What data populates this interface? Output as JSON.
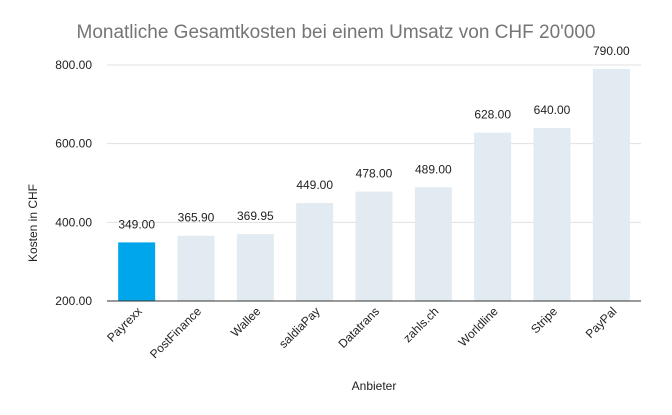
{
  "chart_data": {
    "type": "bar",
    "title": "Monatliche Gesamtkosten bei einem Umsatz von CHF 20'000",
    "xlabel": "Anbieter",
    "ylabel": "Kosten in CHF",
    "categories": [
      "Payrexx",
      "PostFinance",
      "Wallee",
      "saldiaPay",
      "Datatrans",
      "zahls.ch",
      "Worldline",
      "Stripe",
      "PayPal"
    ],
    "values": [
      349.0,
      365.9,
      369.95,
      449.0,
      478.0,
      489.0,
      628.0,
      640.0,
      790.0
    ],
    "value_labels": [
      "349.00",
      "365.90",
      "369.95",
      "449.00",
      "478.00",
      "489.00",
      "628.00",
      "640.00",
      "790.00"
    ],
    "ylim": [
      200,
      800
    ],
    "yticks": [
      200,
      400,
      600,
      800
    ],
    "ytick_labels": [
      "200.00",
      "400.00",
      "600.00",
      "800.00"
    ],
    "grid": true,
    "legend": "none",
    "colors": {
      "highlight": "#00a6eb",
      "default": "#e2ebf2",
      "grid": "#e0e0e0",
      "axis": "#333333"
    },
    "highlight_index": 0
  }
}
